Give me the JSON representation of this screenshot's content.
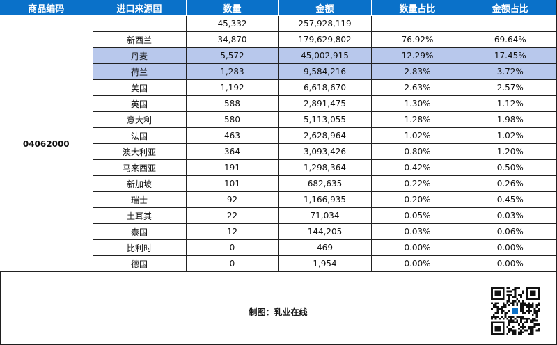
{
  "table": {
    "headers": [
      "商品编码",
      "进口来源国",
      "数量",
      "金额",
      "数量占比",
      "金额占比"
    ],
    "product_code": "04062000",
    "rows": [
      {
        "country": "",
        "quantity": "45,332",
        "amount": "257,928,119",
        "qty_share": "",
        "amt_share": "",
        "highlight": false
      },
      {
        "country": "新西兰",
        "quantity": "34,870",
        "amount": "179,629,802",
        "qty_share": "76.92%",
        "amt_share": "69.64%",
        "highlight": false
      },
      {
        "country": "丹麦",
        "quantity": "5,572",
        "amount": "45,002,915",
        "qty_share": "12.29%",
        "amt_share": "17.45%",
        "highlight": true
      },
      {
        "country": "荷兰",
        "quantity": "1,283",
        "amount": "9,584,216",
        "qty_share": "2.83%",
        "amt_share": "3.72%",
        "highlight": true
      },
      {
        "country": "美国",
        "quantity": "1,192",
        "amount": "6,618,670",
        "qty_share": "2.63%",
        "amt_share": "2.57%",
        "highlight": false
      },
      {
        "country": "英国",
        "quantity": "588",
        "amount": "2,891,475",
        "qty_share": "1.30%",
        "amt_share": "1.12%",
        "highlight": false
      },
      {
        "country": "意大利",
        "quantity": "580",
        "amount": "5,113,055",
        "qty_share": "1.28%",
        "amt_share": "1.98%",
        "highlight": false
      },
      {
        "country": "法国",
        "quantity": "463",
        "amount": "2,628,964",
        "qty_share": "1.02%",
        "amt_share": "1.02%",
        "highlight": false
      },
      {
        "country": "澳大利亚",
        "quantity": "364",
        "amount": "3,093,426",
        "qty_share": "0.80%",
        "amt_share": "1.20%",
        "highlight": false
      },
      {
        "country": "马来西亚",
        "quantity": "191",
        "amount": "1,298,364",
        "qty_share": "0.42%",
        "amt_share": "0.50%",
        "highlight": false
      },
      {
        "country": "新加坡",
        "quantity": "101",
        "amount": "682,635",
        "qty_share": "0.22%",
        "amt_share": "0.26%",
        "highlight": false
      },
      {
        "country": "瑞士",
        "quantity": "92",
        "amount": "1,166,935",
        "qty_share": "0.20%",
        "amt_share": "0.45%",
        "highlight": false
      },
      {
        "country": "土耳其",
        "quantity": "22",
        "amount": "71,034",
        "qty_share": "0.05%",
        "amt_share": "0.03%",
        "highlight": false
      },
      {
        "country": "泰国",
        "quantity": "12",
        "amount": "144,205",
        "qty_share": "0.03%",
        "amt_share": "0.06%",
        "highlight": false
      },
      {
        "country": "比利时",
        "quantity": "0",
        "amount": "469",
        "qty_share": "0.00%",
        "amt_share": "0.00%",
        "highlight": false
      },
      {
        "country": "德国",
        "quantity": "0",
        "amount": "1,954",
        "qty_share": "0.00%",
        "amt_share": "0.00%",
        "highlight": false
      }
    ]
  },
  "footer": {
    "label": "制图：乳业在线",
    "qr_icon": "qr-code-icon"
  },
  "colors": {
    "header_bg": "#0a71c9",
    "highlight_bg": "#b8c8ec"
  }
}
